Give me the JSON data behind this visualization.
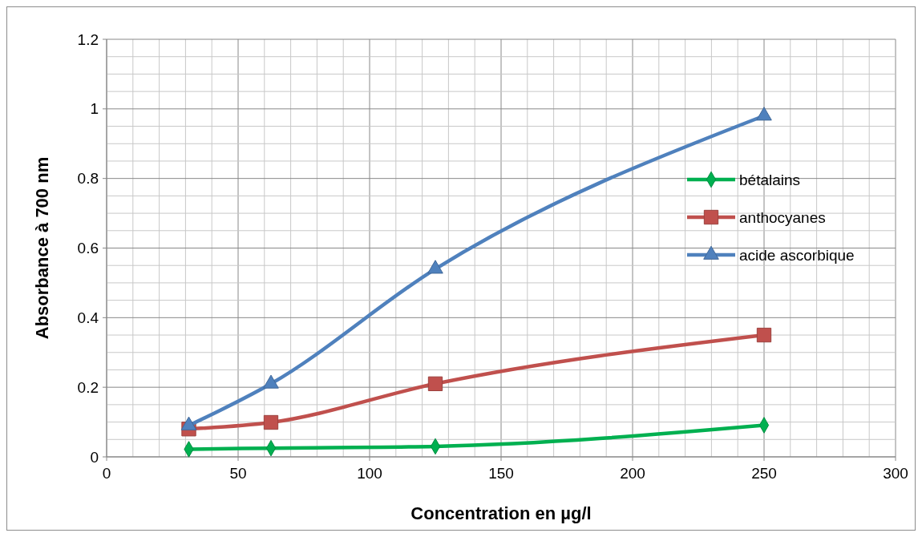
{
  "chart_data": {
    "type": "line",
    "xlabel": "Concentration en µg/l",
    "ylabel": "Absorbance à 700 nm",
    "x": [
      31.25,
      62.5,
      125,
      250
    ],
    "series": [
      {
        "name": "bétalains",
        "color": "#00b050",
        "marker": "diamond",
        "values": [
          0.022,
          0.025,
          0.03,
          0.091
        ]
      },
      {
        "name": "anthocyanes",
        "color": "#c0504d",
        "marker": "square",
        "values": [
          0.08,
          0.099,
          0.21,
          0.35
        ]
      },
      {
        "name": "acide ascorbique",
        "color": "#4f81bd",
        "marker": "triangle",
        "values": [
          0.09,
          0.21,
          0.54,
          0.98
        ]
      }
    ],
    "xlim": [
      0,
      300
    ],
    "xticks": [
      0,
      {
        "value": 10,
        "label": null
      },
      {
        "value": 20,
        "label": null
      },
      {
        "value": 30,
        "label": null
      },
      {
        "value": 40,
        "label": null
      },
      50,
      {
        "value": 60,
        "label": null
      },
      {
        "value": 70,
        "label": null
      },
      {
        "value": 80,
        "label": null
      },
      {
        "value": 90,
        "label": null
      },
      100,
      {
        "value": 110,
        "label": null
      },
      {
        "value": 120,
        "label": null
      },
      {
        "value": 130,
        "label": null
      },
      {
        "value": 140,
        "label": null
      },
      150,
      {
        "value": 160,
        "label": null
      },
      {
        "value": 170,
        "label": null
      },
      {
        "value": 180,
        "label": null
      },
      {
        "value": 190,
        "label": null
      },
      200,
      {
        "value": 210,
        "label": null
      },
      {
        "value": 220,
        "label": null
      },
      {
        "value": 230,
        "label": null
      },
      {
        "value": 240,
        "label": null
      },
      250,
      {
        "value": 260,
        "label": null
      },
      {
        "value": 270,
        "label": null
      },
      {
        "value": 280,
        "label": null
      },
      {
        "value": 290,
        "label": null
      },
      300
    ],
    "ylim": [
      0,
      1.2
    ],
    "yticks": [
      0,
      {
        "value": 0.05,
        "label": null
      },
      {
        "value": 0.1,
        "label": null
      },
      {
        "value": 0.15,
        "label": null
      },
      0.2,
      {
        "value": 0.25,
        "label": null
      },
      {
        "value": 0.3,
        "label": null
      },
      {
        "value": 0.35,
        "label": null
      },
      0.4,
      {
        "value": 0.45,
        "label": null
      },
      {
        "value": 0.5,
        "label": null
      },
      {
        "value": 0.55,
        "label": null
      },
      0.6,
      {
        "value": 0.65,
        "label": null
      },
      {
        "value": 0.7,
        "label": null
      },
      {
        "value": 0.75,
        "label": null
      },
      0.8,
      {
        "value": 0.85,
        "label": null
      },
      {
        "value": 0.9,
        "label": null
      },
      {
        "value": 0.95,
        "label": null
      },
      1,
      {
        "value": 1.05,
        "label": null
      },
      {
        "value": 1.1,
        "label": null
      },
      {
        "value": 1.15,
        "label": null
      },
      1.2
    ],
    "grid": true,
    "legend": "right",
    "line_style": "solid"
  }
}
